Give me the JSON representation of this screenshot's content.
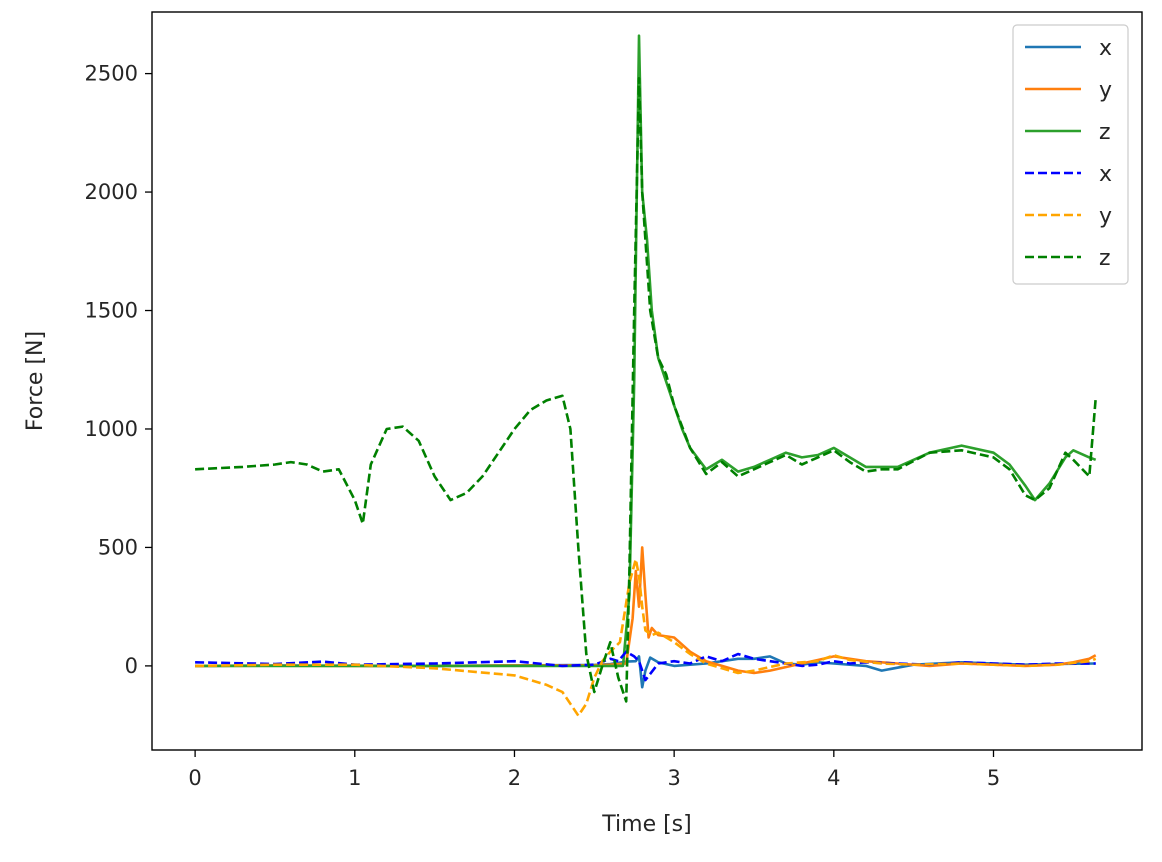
{
  "chart_data": {
    "type": "line",
    "title": "",
    "xlabel": "Time [s]",
    "ylabel": "Force [N]",
    "xlim": [
      -0.27,
      5.93
    ],
    "ylim": [
      -355,
      2760
    ],
    "xticks": [
      0,
      1,
      2,
      3,
      4,
      5
    ],
    "xtick_labels": [
      "0",
      "1",
      "2",
      "3",
      "4",
      "5"
    ],
    "yticks": [
      0,
      500,
      1000,
      1500,
      2000,
      2500
    ],
    "ytick_labels": [
      "0",
      "500",
      "1000",
      "1500",
      "2000",
      "2500"
    ],
    "grid": false,
    "legend_position": "top-right",
    "series": [
      {
        "name": "x",
        "color": "#1f77b4",
        "style": "solid",
        "x": [
          0,
          0.5,
          1.0,
          1.5,
          2.0,
          2.5,
          2.6,
          2.7,
          2.76,
          2.78,
          2.8,
          2.82,
          2.85,
          2.9,
          3.0,
          3.1,
          3.2,
          3.3,
          3.4,
          3.5,
          3.6,
          3.7,
          3.8,
          3.9,
          4.0,
          4.2,
          4.3,
          4.5,
          4.8,
          5.0,
          5.2,
          5.4,
          5.64
        ],
        "y": [
          0,
          2,
          1,
          0,
          2,
          4,
          8,
          18,
          20,
          40,
          -90,
          -20,
          35,
          15,
          0,
          5,
          10,
          20,
          30,
          30,
          40,
          10,
          5,
          15,
          10,
          0,
          -20,
          5,
          15,
          10,
          5,
          8,
          10
        ]
      },
      {
        "name": "y",
        "color": "#ff7f0e",
        "style": "solid",
        "x": [
          0,
          0.5,
          1.0,
          1.5,
          2.0,
          2.5,
          2.6,
          2.7,
          2.74,
          2.76,
          2.78,
          2.8,
          2.82,
          2.84,
          2.86,
          2.9,
          3.0,
          3.1,
          3.2,
          3.3,
          3.4,
          3.5,
          3.6,
          3.8,
          3.9,
          4.0,
          4.1,
          4.2,
          4.4,
          4.6,
          4.8,
          5.0,
          5.2,
          5.4,
          5.5,
          5.6,
          5.64
        ],
        "y": [
          0,
          1,
          0,
          0,
          2,
          3,
          5,
          10,
          200,
          400,
          250,
          500,
          300,
          120,
          160,
          130,
          120,
          60,
          20,
          0,
          -20,
          -30,
          -20,
          10,
          25,
          40,
          30,
          20,
          10,
          0,
          10,
          5,
          0,
          5,
          15,
          30,
          45
        ]
      },
      {
        "name": "z",
        "color": "#2ca02c",
        "style": "solid",
        "x": [
          0,
          0.5,
          1.0,
          1.5,
          2.0,
          2.5,
          2.6,
          2.68,
          2.72,
          2.75,
          2.78,
          2.8,
          2.83,
          2.86,
          2.9,
          3.0,
          3.05,
          3.1,
          3.2,
          3.3,
          3.4,
          3.5,
          3.6,
          3.7,
          3.8,
          3.9,
          4.0,
          4.1,
          4.2,
          4.3,
          4.4,
          4.6,
          4.8,
          5.0,
          5.1,
          5.2,
          5.26,
          5.35,
          5.45,
          5.5,
          5.6,
          5.64
        ],
        "y": [
          0,
          0,
          0,
          0,
          0,
          0,
          0,
          0,
          300,
          1200,
          2660,
          2000,
          1800,
          1500,
          1300,
          1100,
          1000,
          920,
          830,
          870,
          820,
          840,
          870,
          900,
          880,
          890,
          920,
          880,
          840,
          840,
          840,
          900,
          930,
          900,
          850,
          760,
          700,
          770,
          880,
          910,
          880,
          870
        ]
      },
      {
        "name": "x",
        "color": "#0000ff",
        "style": "dashed",
        "x": [
          0,
          0.5,
          0.8,
          1.0,
          1.5,
          2.0,
          2.3,
          2.5,
          2.6,
          2.65,
          2.7,
          2.75,
          2.78,
          2.82,
          2.9,
          3.0,
          3.1,
          3.2,
          3.3,
          3.4,
          3.5,
          3.6,
          3.7,
          3.8,
          3.9,
          4.0,
          4.1,
          4.2,
          4.4,
          4.6,
          4.8,
          5.0,
          5.2,
          5.4,
          5.64
        ],
        "y": [
          15,
          8,
          18,
          5,
          10,
          20,
          0,
          5,
          30,
          20,
          60,
          40,
          20,
          -60,
          10,
          20,
          10,
          40,
          20,
          50,
          30,
          20,
          10,
          0,
          5,
          20,
          10,
          15,
          10,
          5,
          15,
          10,
          5,
          10,
          10
        ]
      },
      {
        "name": "y",
        "color": "#ffa500",
        "style": "dashed",
        "x": [
          0,
          0.5,
          1.0,
          1.5,
          2.0,
          2.2,
          2.3,
          2.35,
          2.4,
          2.45,
          2.5,
          2.55,
          2.6,
          2.66,
          2.72,
          2.76,
          2.78,
          2.8,
          2.82,
          2.86,
          2.9,
          3.0,
          3.1,
          3.2,
          3.3,
          3.4,
          3.5,
          3.7,
          3.9,
          4.0,
          4.1,
          4.3,
          4.5,
          4.8,
          5.0,
          5.2,
          5.4,
          5.6,
          5.64
        ],
        "y": [
          0,
          5,
          5,
          -10,
          -40,
          -80,
          -110,
          -160,
          -210,
          -160,
          -50,
          20,
          60,
          100,
          350,
          450,
          380,
          250,
          150,
          130,
          140,
          100,
          50,
          10,
          -10,
          -30,
          -20,
          10,
          20,
          45,
          25,
          10,
          5,
          10,
          5,
          0,
          5,
          20,
          30
        ]
      },
      {
        "name": "z",
        "color": "#008000",
        "style": "dashed",
        "x": [
          0,
          0.3,
          0.5,
          0.6,
          0.7,
          0.8,
          0.9,
          1.0,
          1.05,
          1.1,
          1.2,
          1.3,
          1.4,
          1.5,
          1.6,
          1.7,
          1.8,
          1.9,
          2.0,
          2.1,
          2.2,
          2.3,
          2.35,
          2.4,
          2.45,
          2.5,
          2.55,
          2.6,
          2.65,
          2.7,
          2.72,
          2.75,
          2.78,
          2.8,
          2.85,
          2.9,
          2.95,
          3.0,
          3.1,
          3.2,
          3.3,
          3.4,
          3.5,
          3.6,
          3.7,
          3.8,
          3.9,
          4.0,
          4.1,
          4.2,
          4.3,
          4.4,
          4.6,
          4.8,
          5.0,
          5.1,
          5.2,
          5.26,
          5.35,
          5.45,
          5.5,
          5.6,
          5.64
        ],
        "y": [
          830,
          840,
          850,
          860,
          850,
          820,
          830,
          700,
          600,
          850,
          1000,
          1010,
          950,
          800,
          700,
          730,
          800,
          900,
          1000,
          1080,
          1120,
          1140,
          1000,
          500,
          50,
          -110,
          0,
          100,
          -50,
          -150,
          400,
          1500,
          2480,
          2000,
          1500,
          1300,
          1230,
          1100,
          920,
          810,
          860,
          800,
          830,
          860,
          890,
          850,
          880,
          910,
          860,
          820,
          830,
          830,
          900,
          910,
          880,
          830,
          720,
          700,
          750,
          900,
          870,
          800,
          1130
        ]
      }
    ]
  }
}
